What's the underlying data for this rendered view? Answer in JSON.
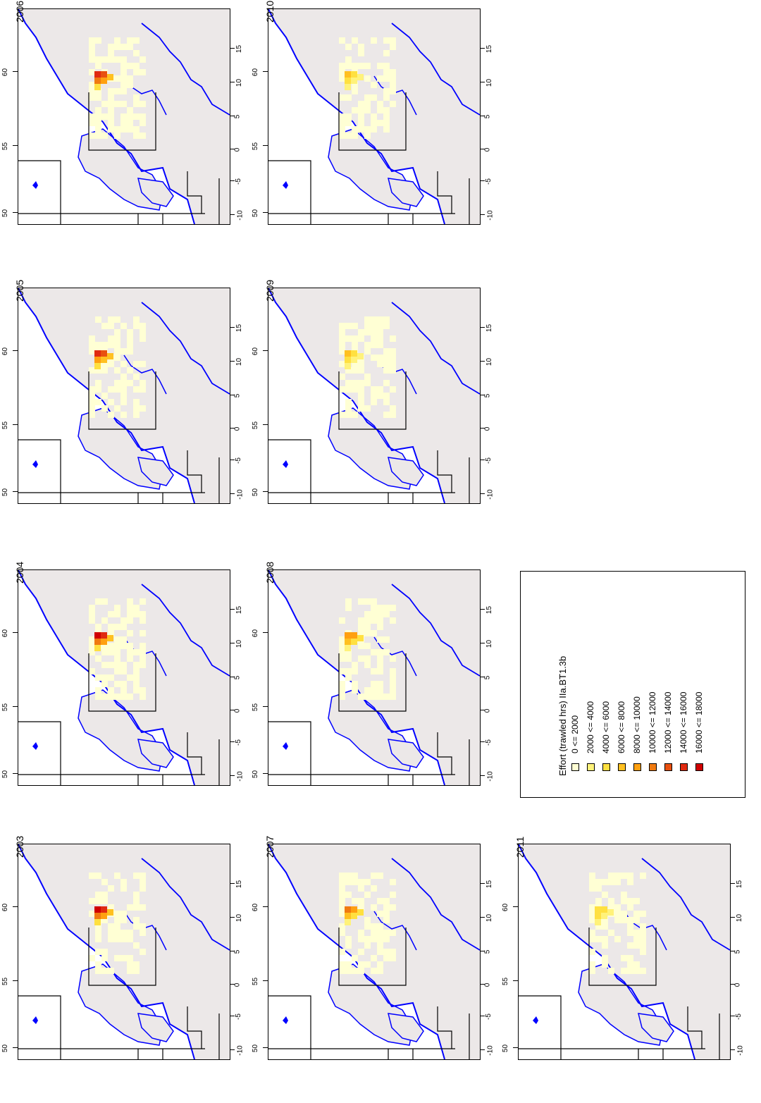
{
  "panels": [
    {
      "year": "2003",
      "intensity": 1.0
    },
    {
      "year": "2004",
      "intensity": 0.95
    },
    {
      "year": "2005",
      "intensity": 0.85
    },
    {
      "year": "2006",
      "intensity": 0.9
    },
    {
      "year": "2007",
      "intensity": 0.6
    },
    {
      "year": "2008",
      "intensity": 0.55
    },
    {
      "year": "2009",
      "intensity": 0.35
    },
    {
      "year": "2010",
      "intensity": 0.35
    },
    {
      "year": "2011",
      "intensity": 0.3
    }
  ],
  "axes": {
    "x_ticks": [
      "-10",
      "-5",
      "0",
      "5",
      "10",
      "15"
    ],
    "y_ticks": [
      "60",
      "55",
      "50"
    ]
  },
  "legend": {
    "title": "Effort (trawled hrs) IIa.BT1.3b",
    "entries": [
      {
        "label": "0 <= 2000",
        "color": "#ffffd4"
      },
      {
        "label": "2000 <= 4000",
        "color": "#fff27a"
      },
      {
        "label": "4000 <= 6000",
        "color": "#ffe040"
      },
      {
        "label": "6000 <= 8000",
        "color": "#ffc020"
      },
      {
        "label": "8000 <= 10000",
        "color": "#ffa010"
      },
      {
        "label": "10000 <= 12000",
        "color": "#f07a10"
      },
      {
        "label": "12000 <= 14000",
        "color": "#e85010"
      },
      {
        "label": "14000 <= 16000",
        "color": "#e02a10"
      },
      {
        "label": "16000 <= 18000",
        "color": "#d00000"
      }
    ]
  },
  "colors": {
    "land": "#ece8e8",
    "coast": "#0000ff",
    "grid_line": "#000000",
    "effort_low": "#ffffd4",
    "effort_high": "#d00000"
  }
}
